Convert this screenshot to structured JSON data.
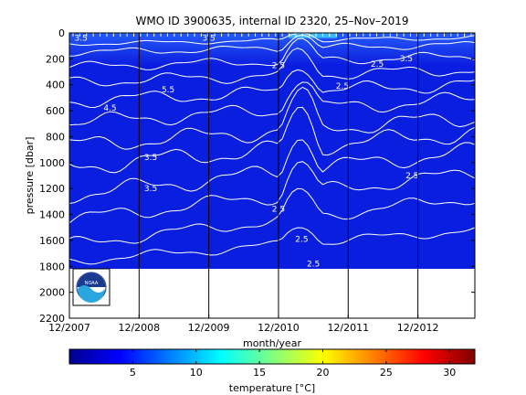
{
  "chart_data": {
    "type": "heatmap",
    "title": "WMO ID 3900635, internal ID 2320, 25–Nov–2019",
    "xlabel": "month/year",
    "ylabel": "pressure [dbar]",
    "x_tick_labels": [
      "12/2007",
      "12/2008",
      "12/2009",
      "12/2010",
      "12/2011",
      "12/2012"
    ],
    "y_tick_values": [
      0,
      200,
      400,
      600,
      800,
      1000,
      1200,
      1400,
      1600,
      1800,
      2000,
      2200
    ],
    "ylim": [
      0,
      2200
    ],
    "xlim": [
      "2007-12",
      "2012-12"
    ],
    "y_reversed": true,
    "data_pressure_max": 1820,
    "colorbar": {
      "label": "temperature [°C]",
      "min": 0,
      "max": 32,
      "ticks": [
        5,
        10,
        15,
        20,
        25,
        30
      ],
      "colormap": "jet"
    },
    "contour_labels": [
      {
        "date": "2008-02",
        "pressure": 60,
        "text": "3.5"
      },
      {
        "date": "2009-12",
        "pressure": 60,
        "text": "3.5"
      },
      {
        "date": "2009-05",
        "pressure": 460,
        "text": "5.5"
      },
      {
        "date": "2008-07",
        "pressure": 600,
        "text": "4.5"
      },
      {
        "date": "2009-02",
        "pressure": 980,
        "text": "3.5"
      },
      {
        "date": "2009-02",
        "pressure": 1220,
        "text": "3.5"
      },
      {
        "date": "2010-12",
        "pressure": 270,
        "text": "2.5"
      },
      {
        "date": "2011-11",
        "pressure": 430,
        "text": "2.5"
      },
      {
        "date": "2012-05",
        "pressure": 260,
        "text": "2.5"
      },
      {
        "date": "2012-10",
        "pressure": 220,
        "text": "3.5"
      },
      {
        "date": "2012-11",
        "pressure": 1120,
        "text": "2.5"
      },
      {
        "date": "2010-12",
        "pressure": 1380,
        "text": "2.5"
      },
      {
        "date": "2011-04",
        "pressure": 1610,
        "text": "2.5"
      },
      {
        "date": "2011-06",
        "pressure": 1800,
        "text": "2.5"
      }
    ],
    "vertical_reference_dates": [
      "2008-12",
      "2009-12",
      "2010-12",
      "2011-12",
      "2012-12"
    ],
    "grid": false,
    "logo": "noaa-logo"
  }
}
